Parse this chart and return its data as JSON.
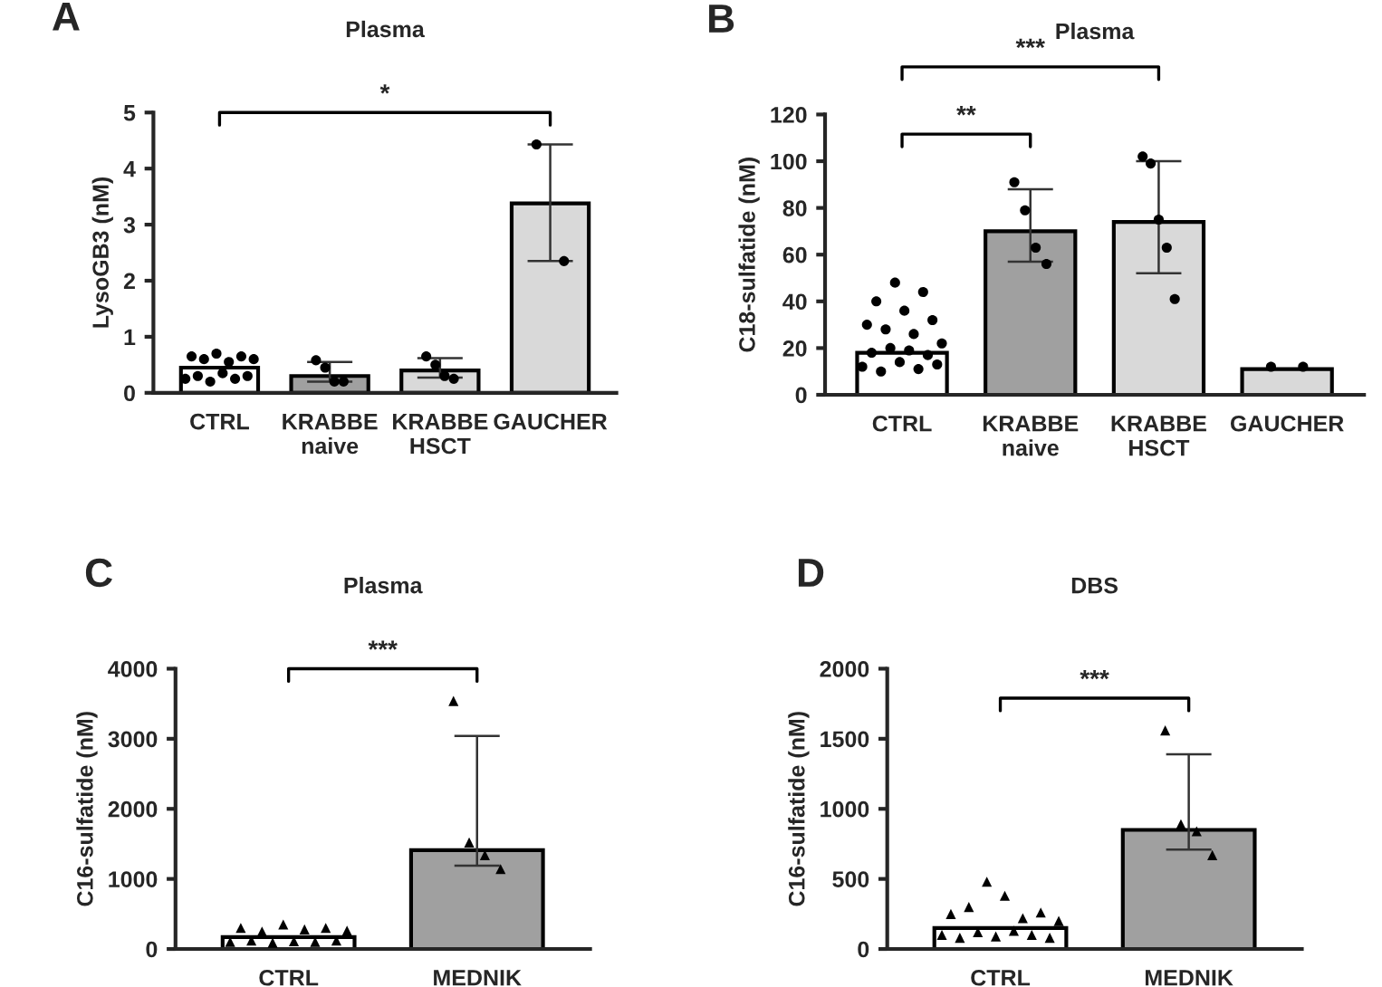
{
  "chart_data": [
    {
      "type": "bar",
      "title": "Plasma",
      "ylabel": "LysoGB3 (nM)",
      "categories": [
        "CTRL",
        "KRABBE\nnaive",
        "KRABBE\nHSCT",
        "GAUCHER"
      ],
      "ylim": [
        0,
        5
      ],
      "yticks": [
        0,
        1,
        2,
        3,
        4,
        5
      ],
      "marker": "circle",
      "annotations": [
        "A",
        "*"
      ],
      "series": [
        {
          "type": "bar",
          "colors": [
            "#ffffff",
            "#a0a0a0",
            "#d9d9d9",
            "#d9d9d9"
          ],
          "values": [
            0.45,
            0.3,
            0.4,
            3.38
          ],
          "errors": [
            null,
            [
              0.2,
              0.55
            ],
            [
              0.27,
              0.62
            ],
            [
              2.35,
              4.43
            ]
          ]
        },
        {
          "type": "scatter",
          "color": "#000000",
          "x": [
            "CTRL",
            "CTRL",
            "CTRL",
            "CTRL",
            "CTRL",
            "CTRL",
            "CTRL",
            "CTRL",
            "CTRL",
            "CTRL",
            "CTRL",
            "CTRL",
            "KRABBE\nnaive",
            "KRABBE\nnaive",
            "KRABBE\nnaive",
            "KRABBE\nnaive",
            "KRABBE\nHSCT",
            "KRABBE\nHSCT",
            "KRABBE\nHSCT",
            "KRABBE\nHSCT",
            "GAUCHER",
            "GAUCHER"
          ],
          "values": [
            0.25,
            0.65,
            0.3,
            0.6,
            0.2,
            0.7,
            0.35,
            0.55,
            0.25,
            0.65,
            0.3,
            0.6,
            0.58,
            0.45,
            0.2,
            0.2,
            0.65,
            0.5,
            0.3,
            0.25,
            4.43,
            2.35
          ]
        }
      ]
    },
    {
      "type": "bar",
      "title": "Plasma",
      "ylabel": "C18-sulfatide (nM)",
      "categories": [
        "CTRL",
        "KRABBE\nnaive",
        "KRABBE\nHSCT",
        "GAUCHER"
      ],
      "ylim": [
        0,
        120
      ],
      "yticks": [
        0,
        20,
        40,
        60,
        80,
        100,
        120
      ],
      "marker": "circle",
      "annotations": [
        "B",
        "**",
        "***"
      ],
      "series": [
        {
          "type": "bar",
          "colors": [
            "#ffffff",
            "#a0a0a0",
            "#d9d9d9",
            "#d9d9d9"
          ],
          "values": [
            18,
            70,
            74,
            11
          ],
          "errors": [
            null,
            [
              57,
              88
            ],
            [
              52,
              100
            ],
            null
          ]
        },
        {
          "type": "scatter",
          "color": "#000000",
          "x": [
            "CTRL",
            "CTRL",
            "CTRL",
            "CTRL",
            "CTRL",
            "CTRL",
            "CTRL",
            "CTRL",
            "CTRL",
            "CTRL",
            "CTRL",
            "CTRL",
            "CTRL",
            "CTRL",
            "CTRL",
            "CTRL",
            "CTRL",
            "CTRL",
            "KRABBE\nnaive",
            "KRABBE\nnaive",
            "KRABBE\nnaive",
            "KRABBE\nnaive",
            "KRABBE\nHSCT",
            "KRABBE\nHSCT",
            "KRABBE\nHSCT",
            "KRABBE\nHSCT",
            "KRABBE\nHSCT",
            "GAUCHER",
            "GAUCHER"
          ],
          "values": [
            12,
            30,
            18,
            40,
            10,
            28,
            20,
            48,
            14,
            36,
            19,
            26,
            11,
            44,
            17,
            32,
            13,
            22,
            91,
            79,
            63,
            56,
            102,
            99,
            75,
            63,
            41,
            12,
            12
          ]
        }
      ]
    },
    {
      "type": "bar",
      "title": "Plasma",
      "ylabel": "C16-sulfatide (nM)",
      "categories": [
        "CTRL",
        "MEDNIK"
      ],
      "ylim": [
        0,
        4000
      ],
      "yticks": [
        0,
        1000,
        2000,
        3000,
        4000
      ],
      "marker": "triangle",
      "annotations": [
        "C",
        "***"
      ],
      "series": [
        {
          "type": "bar",
          "colors": [
            "#ffffff",
            "#a0a0a0"
          ],
          "values": [
            170,
            1410
          ],
          "errors": [
            null,
            [
              1190,
              3040
            ]
          ]
        },
        {
          "type": "scatter",
          "color": "#000000",
          "x": [
            "CTRL",
            "CTRL",
            "CTRL",
            "CTRL",
            "CTRL",
            "CTRL",
            "CTRL",
            "CTRL",
            "CTRL",
            "CTRL",
            "CTRL",
            "CTRL",
            "MEDNIK",
            "MEDNIK",
            "MEDNIK",
            "MEDNIK"
          ],
          "values": [
            100,
            300,
            120,
            250,
            90,
            350,
            110,
            280,
            100,
            300,
            120,
            260,
            3540,
            1520,
            1340,
            1140
          ]
        }
      ]
    },
    {
      "type": "bar",
      "title": "DBS",
      "ylabel": "C16-sulfatide (nM)",
      "categories": [
        "CTRL",
        "MEDNIK"
      ],
      "ylim": [
        0,
        2000
      ],
      "yticks": [
        0,
        500,
        1000,
        1500,
        2000
      ],
      "marker": "triangle",
      "annotations": [
        "D",
        "***"
      ],
      "series": [
        {
          "type": "bar",
          "colors": [
            "#ffffff",
            "#a0a0a0"
          ],
          "values": [
            150,
            850
          ],
          "errors": [
            null,
            [
              710,
              1390
            ]
          ]
        },
        {
          "type": "scatter",
          "color": "#000000",
          "x": [
            "CTRL",
            "CTRL",
            "CTRL",
            "CTRL",
            "CTRL",
            "CTRL",
            "CTRL",
            "CTRL",
            "CTRL",
            "CTRL",
            "CTRL",
            "CTRL",
            "CTRL",
            "CTRL",
            "MEDNIK",
            "MEDNIK",
            "MEDNIK",
            "MEDNIK"
          ],
          "values": [
            100,
            250,
            80,
            300,
            120,
            480,
            90,
            380,
            130,
            220,
            100,
            260,
            80,
            200,
            1560,
            890,
            840,
            670
          ]
        }
      ]
    }
  ]
}
